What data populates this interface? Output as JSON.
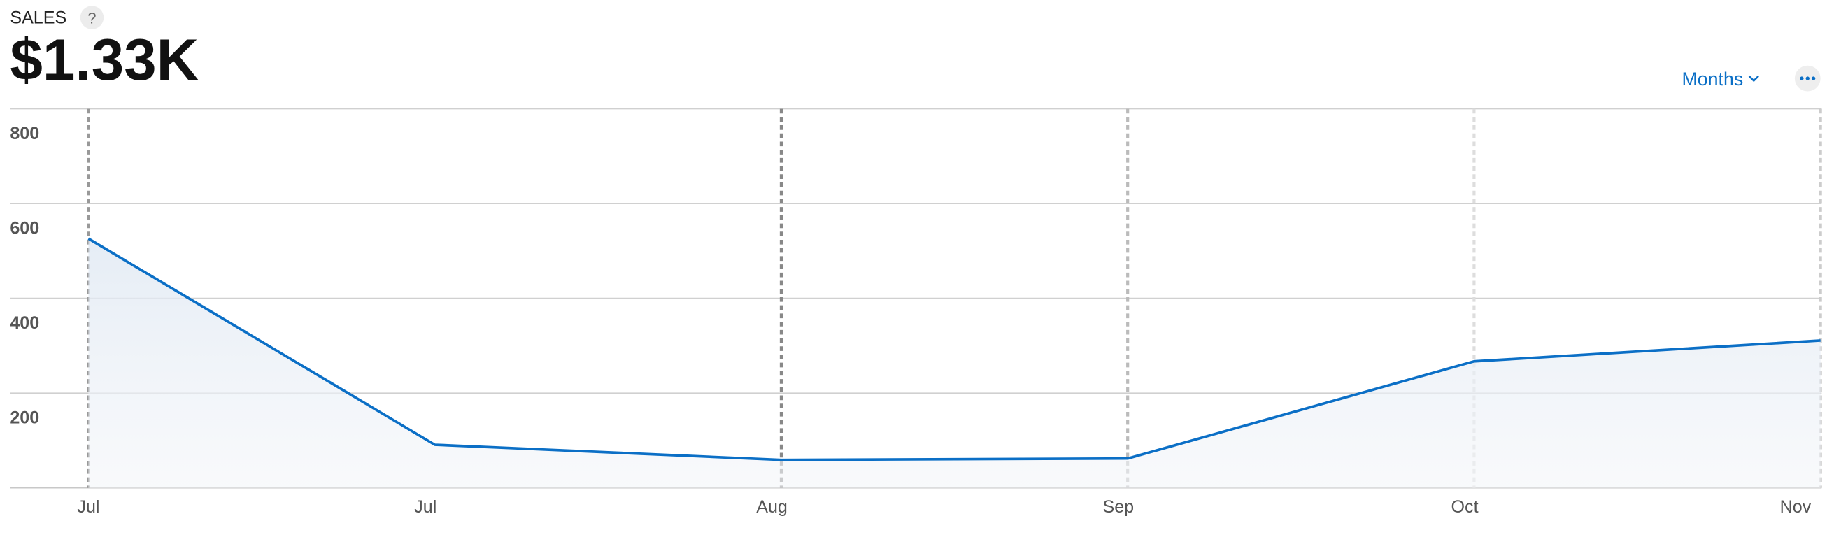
{
  "header": {
    "title": "SALES",
    "help": "?",
    "total": "$1.33K",
    "period_menu": "Months"
  },
  "chart_data": {
    "type": "area",
    "categories": [
      "Jul",
      "Jul",
      "Aug",
      "Sep",
      "Oct",
      "Nov"
    ],
    "values": [
      526,
      91,
      59,
      62,
      267,
      311
    ],
    "color": "#0b6fc6",
    "ylim": [
      0,
      800
    ],
    "yticks": [
      200,
      400,
      600,
      800
    ],
    "grid": true
  }
}
